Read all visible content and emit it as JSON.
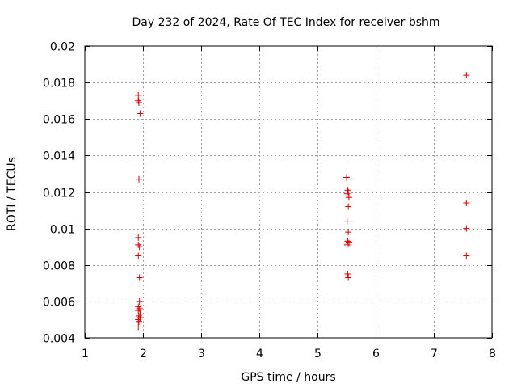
{
  "chart_data": {
    "type": "scatter",
    "title": "Day 232 of 2024, Rate Of TEC Index for receiver bshm",
    "xlabel": "GPS time / hours",
    "ylabel": "ROTI / TECUs",
    "xlim": [
      1,
      8
    ],
    "ylim": [
      0.004,
      0.02
    ],
    "grid": true,
    "marker": "+",
    "color": "#e00000",
    "x_ticks": [
      "1",
      "2",
      "3",
      "4",
      "5",
      "6",
      "7",
      "8"
    ],
    "y_ticks": [
      "0.004",
      "0.006",
      "0.008",
      "0.01",
      "0.012",
      "0.014",
      "0.016",
      "0.018",
      "0.02"
    ],
    "series": [
      {
        "name": "ROTI",
        "points": [
          [
            1.92,
            0.0173
          ],
          [
            1.92,
            0.017
          ],
          [
            1.93,
            0.0169
          ],
          [
            1.95,
            0.0163
          ],
          [
            1.93,
            0.0127
          ],
          [
            1.92,
            0.0095
          ],
          [
            1.92,
            0.0091
          ],
          [
            1.94,
            0.009
          ],
          [
            1.92,
            0.0085
          ],
          [
            1.94,
            0.0073
          ],
          [
            1.94,
            0.006
          ],
          [
            1.92,
            0.0057
          ],
          [
            1.94,
            0.0056
          ],
          [
            1.92,
            0.0055
          ],
          [
            1.95,
            0.0053
          ],
          [
            1.93,
            0.0052
          ],
          [
            1.95,
            0.0051
          ],
          [
            1.92,
            0.005
          ],
          [
            1.93,
            0.0049
          ],
          [
            1.92,
            0.0046
          ],
          [
            5.5,
            0.0128
          ],
          [
            5.52,
            0.0121
          ],
          [
            5.53,
            0.012
          ],
          [
            5.51,
            0.0119
          ],
          [
            5.54,
            0.0117
          ],
          [
            5.53,
            0.0112
          ],
          [
            5.51,
            0.0104
          ],
          [
            5.53,
            0.0098
          ],
          [
            5.52,
            0.0093
          ],
          [
            5.54,
            0.0092
          ],
          [
            5.51,
            0.0091
          ],
          [
            5.52,
            0.0075
          ],
          [
            5.53,
            0.0073
          ],
          [
            7.56,
            0.0184
          ],
          [
            7.56,
            0.0114
          ],
          [
            7.56,
            0.01
          ],
          [
            7.56,
            0.0085
          ]
        ]
      }
    ]
  }
}
